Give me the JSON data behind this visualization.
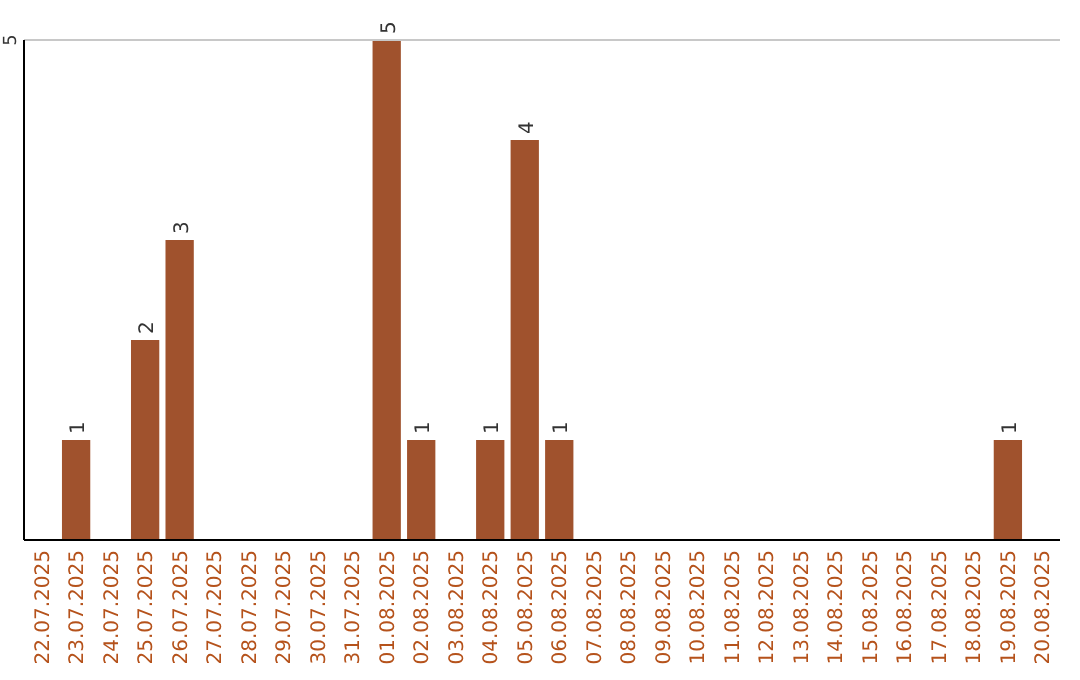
{
  "chart_data": {
    "type": "bar",
    "categories": [
      "22.07.2025",
      "23.07.2025",
      "24.07.2025",
      "25.07.2025",
      "26.07.2025",
      "27.07.2025",
      "28.07.2025",
      "29.07.2025",
      "30.07.2025",
      "31.07.2025",
      "01.08.2025",
      "02.08.2025",
      "03.08.2025",
      "04.08.2025",
      "05.08.2025",
      "06.08.2025",
      "07.08.2025",
      "08.08.2025",
      "09.08.2025",
      "10.08.2025",
      "11.08.2025",
      "12.08.2025",
      "13.08.2025",
      "14.08.2025",
      "15.08.2025",
      "16.08.2025",
      "17.08.2025",
      "18.08.2025",
      "19.08.2025",
      "20.08.2025"
    ],
    "values": [
      0,
      1,
      0,
      2,
      3,
      0,
      0,
      0,
      0,
      0,
      5,
      1,
      0,
      1,
      4,
      1,
      0,
      0,
      0,
      0,
      0,
      0,
      0,
      0,
      0,
      0,
      0,
      0,
      1,
      0
    ],
    "value_labels": [
      null,
      "1",
      null,
      "2",
      "3",
      null,
      null,
      null,
      null,
      null,
      "5",
      "1",
      null,
      "1",
      "4",
      "1",
      null,
      null,
      null,
      null,
      null,
      null,
      null,
      null,
      null,
      null,
      null,
      null,
      "1",
      null
    ],
    "color": "#a0522d",
    "ylim": [
      0,
      5
    ],
    "yticks": [
      5
    ]
  }
}
